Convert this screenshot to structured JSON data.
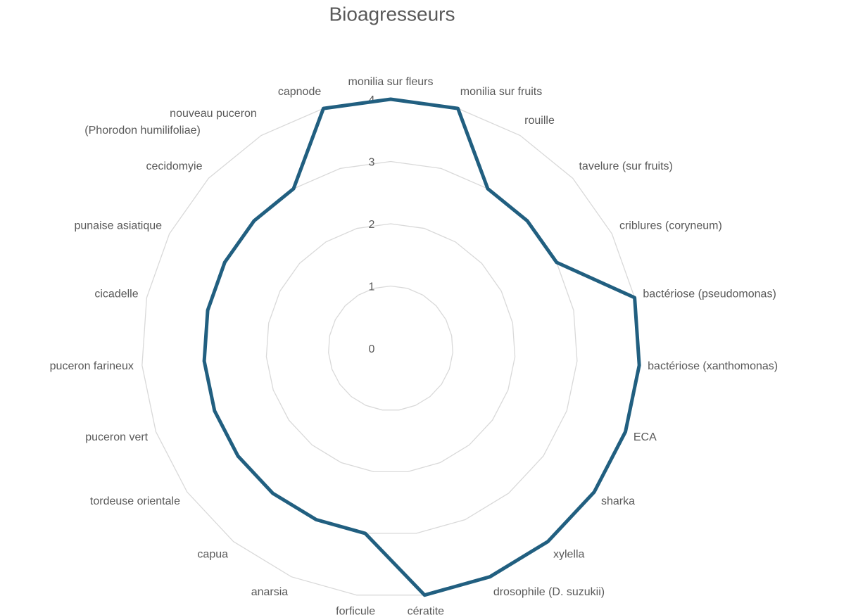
{
  "chart_data": {
    "type": "radar",
    "title": "Bioagresseurs",
    "categories": [
      "monilia sur fleurs",
      "monilia sur fruits",
      "rouille",
      "tavelure (sur fruits)",
      "criblures (coryneum)",
      "bactériose (pseudomonas)",
      "bactériose (xanthomonas)",
      "ECA",
      "sharka",
      "xylella",
      "drosophile (D. suzukii)",
      "cératite",
      "forficule",
      "anarsia",
      "capua",
      "tordeuse orientale",
      "puceron vert",
      "puceron farineux",
      "cicadelle",
      "punaise asiatique",
      "cecidomyie",
      "nouveau puceron (Phorodon humilifoliae)",
      "capnode"
    ],
    "values": [
      4,
      4,
      3,
      3,
      3,
      4,
      4,
      4,
      4,
      4,
      4,
      4,
      3,
      3,
      3,
      3,
      3,
      3,
      3,
      3,
      3,
      3,
      4
    ],
    "color": "#215f80",
    "ylim": [
      0,
      4
    ],
    "yticks": [
      0,
      1,
      2,
      3,
      4
    ],
    "grid": true
  }
}
